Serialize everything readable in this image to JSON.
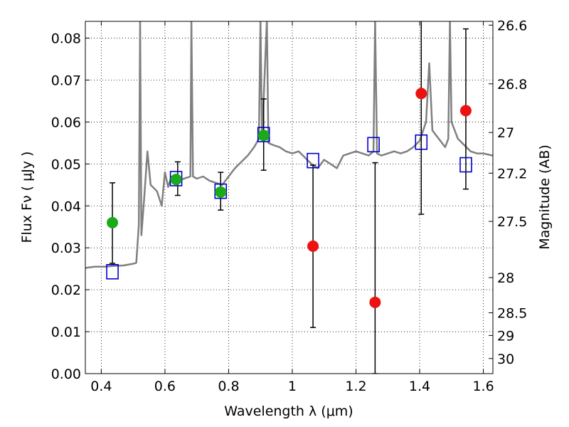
{
  "chart_data": {
    "type": "scatter",
    "xlabel": "Wavelength  λ (μm)",
    "ylabel": "Flux  Fν  ( μJy )",
    "y2label": "Magnitude (AB)",
    "xlim": [
      0.35,
      1.63
    ],
    "ylim": [
      0.0,
      0.084
    ],
    "grid": true,
    "x_ticks": [
      {
        "value": 0.4,
        "label": "0.4"
      },
      {
        "value": 0.6,
        "label": "0.6"
      },
      {
        "value": 0.8,
        "label": "0.8"
      },
      {
        "value": 1.0,
        "label": "1"
      },
      {
        "value": 1.2,
        "label": "1.2"
      },
      {
        "value": 1.4,
        "label": "1.4"
      },
      {
        "value": 1.6,
        "label": "1.6"
      }
    ],
    "y_ticks": [
      {
        "value": 0.0,
        "label": "0.00"
      },
      {
        "value": 0.01,
        "label": "0.01"
      },
      {
        "value": 0.02,
        "label": "0.02"
      },
      {
        "value": 0.03,
        "label": "0.03"
      },
      {
        "value": 0.04,
        "label": "0.04"
      },
      {
        "value": 0.05,
        "label": "0.05"
      },
      {
        "value": 0.06,
        "label": "0.06"
      },
      {
        "value": 0.07,
        "label": "0.07"
      },
      {
        "value": 0.08,
        "label": "0.08"
      }
    ],
    "y2_ticks": [
      {
        "flux": 0.0831,
        "label": "26.6"
      },
      {
        "flux": 0.0691,
        "label": "26.8"
      },
      {
        "flux": 0.0575,
        "label": "27"
      },
      {
        "flux": 0.0478,
        "label": "27.2"
      },
      {
        "flux": 0.0363,
        "label": "27.5"
      },
      {
        "flux": 0.0229,
        "label": "28"
      },
      {
        "flux": 0.0145,
        "label": "28.5"
      },
      {
        "flux": 0.0091,
        "label": "29"
      },
      {
        "flux": 0.0036,
        "label": "30"
      }
    ],
    "series": [
      {
        "kind": "line",
        "color": "#808080",
        "points": [
          [
            0.35,
            0.0252
          ],
          [
            0.38,
            0.0255
          ],
          [
            0.41,
            0.0255
          ],
          [
            0.44,
            0.0257
          ],
          [
            0.47,
            0.0258
          ],
          [
            0.5,
            0.0262
          ],
          [
            0.51,
            0.0264
          ],
          [
            0.518,
            0.0355
          ],
          [
            0.522,
            0.0842
          ],
          [
            0.526,
            0.033
          ],
          [
            0.535,
            0.042
          ],
          [
            0.545,
            0.053
          ],
          [
            0.555,
            0.045
          ],
          [
            0.575,
            0.0435
          ],
          [
            0.59,
            0.04
          ],
          [
            0.6,
            0.048
          ],
          [
            0.61,
            0.0445
          ],
          [
            0.62,
            0.047
          ],
          [
            0.64,
            0.046
          ],
          [
            0.66,
            0.0465
          ],
          [
            0.68,
            0.047
          ],
          [
            0.683,
            0.0842
          ],
          [
            0.688,
            0.047
          ],
          [
            0.7,
            0.0465
          ],
          [
            0.72,
            0.047
          ],
          [
            0.74,
            0.046
          ],
          [
            0.76,
            0.0455
          ],
          [
            0.78,
            0.045
          ],
          [
            0.8,
            0.047
          ],
          [
            0.82,
            0.049
          ],
          [
            0.84,
            0.0505
          ],
          [
            0.86,
            0.052
          ],
          [
            0.88,
            0.054
          ],
          [
            0.895,
            0.056
          ],
          [
            0.9,
            0.0842
          ],
          [
            0.905,
            0.056
          ],
          [
            0.92,
            0.0842
          ],
          [
            0.925,
            0.055
          ],
          [
            0.94,
            0.0545
          ],
          [
            0.96,
            0.054
          ],
          [
            0.98,
            0.053
          ],
          [
            1.0,
            0.0525
          ],
          [
            1.02,
            0.053
          ],
          [
            1.04,
            0.0515
          ],
          [
            1.06,
            0.05
          ],
          [
            1.08,
            0.049
          ],
          [
            1.1,
            0.051
          ],
          [
            1.12,
            0.05
          ],
          [
            1.14,
            0.049
          ],
          [
            1.16,
            0.052
          ],
          [
            1.18,
            0.0525
          ],
          [
            1.2,
            0.053
          ],
          [
            1.22,
            0.0525
          ],
          [
            1.24,
            0.052
          ],
          [
            1.255,
            0.053
          ],
          [
            1.26,
            0.0842
          ],
          [
            1.266,
            0.0525
          ],
          [
            1.28,
            0.052
          ],
          [
            1.3,
            0.0525
          ],
          [
            1.32,
            0.053
          ],
          [
            1.34,
            0.0525
          ],
          [
            1.36,
            0.053
          ],
          [
            1.38,
            0.054
          ],
          [
            1.4,
            0.0555
          ],
          [
            1.42,
            0.06
          ],
          [
            1.43,
            0.074
          ],
          [
            1.44,
            0.058
          ],
          [
            1.46,
            0.056
          ],
          [
            1.48,
            0.054
          ],
          [
            1.49,
            0.056
          ],
          [
            1.495,
            0.0842
          ],
          [
            1.5,
            0.06
          ],
          [
            1.52,
            0.056
          ],
          [
            1.54,
            0.0545
          ],
          [
            1.56,
            0.053
          ],
          [
            1.58,
            0.0525
          ],
          [
            1.6,
            0.0525
          ],
          [
            1.63,
            0.052
          ]
        ]
      },
      {
        "kind": "square",
        "color": "#0000cc",
        "points": [
          [
            0.435,
            0.0243
          ],
          [
            0.635,
            0.0465
          ],
          [
            0.775,
            0.0435
          ],
          [
            0.91,
            0.057
          ],
          [
            1.065,
            0.0508
          ],
          [
            1.255,
            0.0546
          ],
          [
            1.405,
            0.0552
          ],
          [
            1.545,
            0.0498
          ]
        ]
      },
      {
        "kind": "circle",
        "color": "#1aaa1a",
        "points": [
          [
            0.435,
            0.036
          ],
          [
            0.635,
            0.0463
          ],
          [
            0.775,
            0.0433
          ],
          [
            0.91,
            0.0568
          ]
        ]
      },
      {
        "kind": "circle",
        "color": "#ee1111",
        "points": [
          [
            1.065,
            0.0304
          ],
          [
            1.26,
            0.017
          ],
          [
            1.405,
            0.0668
          ],
          [
            1.545,
            0.0627
          ]
        ]
      }
    ],
    "error_bars": [
      {
        "x": 0.435,
        "low": 0.0263,
        "high": 0.0455
      },
      {
        "x": 0.64,
        "low": 0.0425,
        "high": 0.0505
      },
      {
        "x": 0.775,
        "low": 0.039,
        "high": 0.048
      },
      {
        "x": 0.91,
        "low": 0.0485,
        "high": 0.0655
      },
      {
        "x": 1.065,
        "low": 0.011,
        "high": 0.0497
      },
      {
        "x": 1.26,
        "low": 0.0,
        "high": 0.0503
      },
      {
        "x": 1.405,
        "low": 0.038,
        "high": 0.0842
      },
      {
        "x": 1.545,
        "low": 0.044,
        "high": 0.0822
      }
    ]
  }
}
